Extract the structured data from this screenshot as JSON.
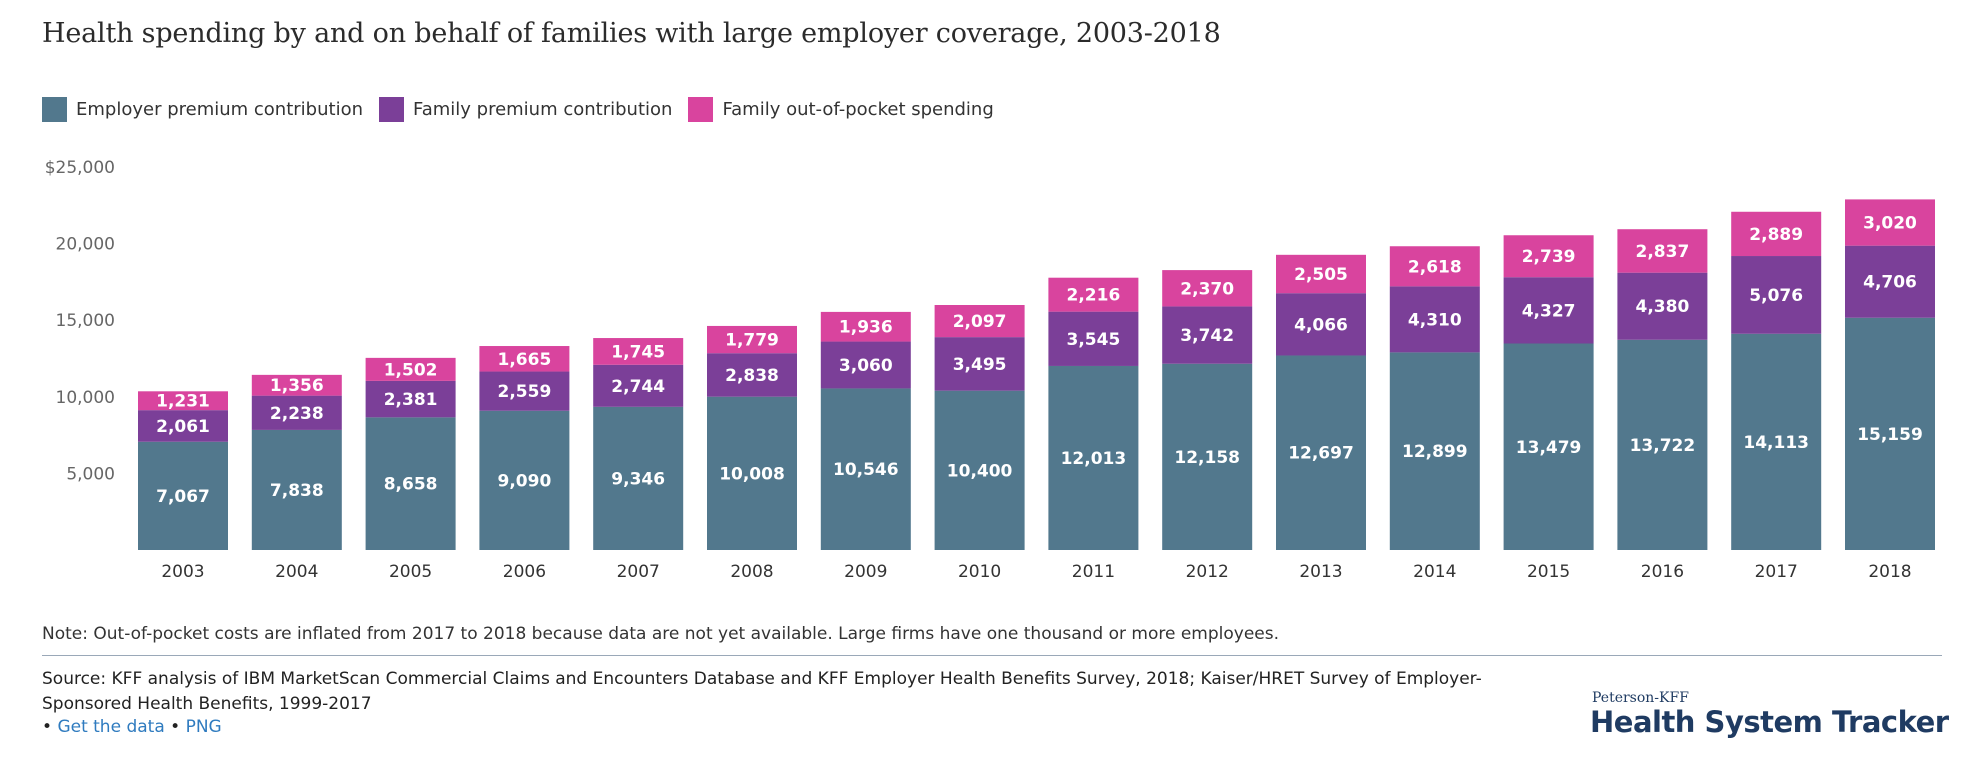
{
  "title": "Health spending by and on behalf of families with large employer coverage, 2003-2018",
  "legend": [
    {
      "label": "Employer premium contribution",
      "color": "#52788d"
    },
    {
      "label": "Family premium contribution",
      "color": "#7b3f98"
    },
    {
      "label": "Family out-of-pocket spending",
      "color": "#d9449e"
    }
  ],
  "chart_data": {
    "type": "bar",
    "stacked": true,
    "categories": [
      "2003",
      "2004",
      "2005",
      "2006",
      "2007",
      "2008",
      "2009",
      "2010",
      "2011",
      "2012",
      "2013",
      "2014",
      "2015",
      "2016",
      "2017",
      "2018"
    ],
    "series": [
      {
        "name": "Employer premium contribution",
        "color": "#52788d",
        "values": [
          7067,
          7838,
          8658,
          9090,
          9346,
          10008,
          10546,
          10400,
          12013,
          12158,
          12697,
          12899,
          13479,
          13722,
          14113,
          15159
        ],
        "labels": [
          "7,067",
          "7,838",
          "8,658",
          "9,090",
          "9,346",
          "10,008",
          "10,546",
          "10,400",
          "12,013",
          "12,158",
          "12,697",
          "12,899",
          "13,479",
          "13,722",
          "14,113",
          "15,159"
        ]
      },
      {
        "name": "Family premium contribution",
        "color": "#7b3f98",
        "values": [
          2061,
          2238,
          2381,
          2559,
          2744,
          2838,
          3060,
          3495,
          3545,
          3742,
          4066,
          4310,
          4327,
          4380,
          5076,
          4706
        ],
        "labels": [
          "2,061",
          "2,238",
          "2,381",
          "2,559",
          "2,744",
          "2,838",
          "3,060",
          "3,495",
          "3,545",
          "3,742",
          "4,066",
          "4,310",
          "4,327",
          "4,380",
          "5,076",
          "4,706"
        ]
      },
      {
        "name": "Family out-of-pocket spending",
        "color": "#d9449e",
        "values": [
          1231,
          1356,
          1502,
          1665,
          1745,
          1779,
          1936,
          2097,
          2216,
          2370,
          2505,
          2618,
          2739,
          2837,
          2889,
          3020
        ],
        "labels": [
          "1,231",
          "1,356",
          "1,502",
          "1,665",
          "1,745",
          "1,779",
          "1,936",
          "2,097",
          "2,216",
          "2,370",
          "2,505",
          "2,618",
          "2,739",
          "2,837",
          "2,889",
          "3,020"
        ]
      }
    ],
    "y_ticks": [
      {
        "value": 5000,
        "label": "5,000"
      },
      {
        "value": 10000,
        "label": "10,000"
      },
      {
        "value": 15000,
        "label": "15,000"
      },
      {
        "value": 20000,
        "label": "20,000"
      },
      {
        "value": 25000,
        "label": "$25,000"
      }
    ],
    "ylim": [
      0,
      25000
    ],
    "grid": false,
    "legend_position": "top-left"
  },
  "note": "Note: Out-of-pocket costs are inflated from 2017 to 2018 because data are not yet available. Large firms have one thousand or more employees.",
  "source": "Source: KFF analysis of IBM MarketScan Commercial Claims and Encounters Database and KFF Employer Health Benefits Survey, 2018; Kaiser/HRET Survey of Employer-Sponsored Health Benefits, 1999-2017",
  "links": {
    "bullet": "•",
    "get_data": "Get the data",
    "png": "PNG"
  },
  "brand": {
    "small": "Peterson-KFF",
    "big": "Health System Tracker"
  }
}
